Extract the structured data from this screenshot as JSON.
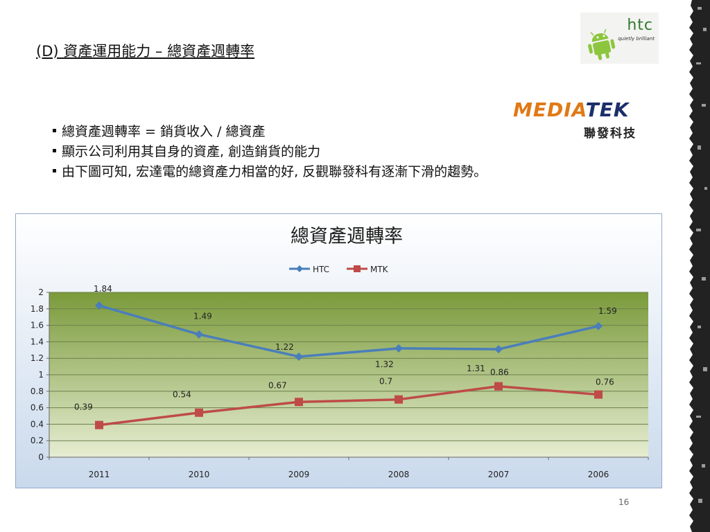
{
  "slide": {
    "title": "(D) 資產運用能力 – 總資產週轉率",
    "bullets": [
      "總資產週轉率 = 銷貨收入 / 總資產",
      "顯示公司利用其自身的資產, 創造銷貨的能力",
      "由下圖可知, 宏達電的總資產力相當的好, 反觀聯發科有逐漸下滑的趨勢。"
    ],
    "page_number": "16",
    "htc_logo": {
      "text": "htc",
      "tagline": "quietly brilliant",
      "icon": "android-robot-icon"
    },
    "mediatek_logo": {
      "part1": "MEDIA",
      "part2": "TEK",
      "subtitle": "聯發科技"
    }
  },
  "colors": {
    "htc_series": "#4a7ebb",
    "mtk_series": "#be4b48",
    "plot_top": "#7a9a3a",
    "plot_bottom": "#e6edd2",
    "chart_bg_top": "#ffffff",
    "chart_bg_bottom": "#c9d9ec"
  },
  "chart_data": {
    "type": "line",
    "title": "總資產週轉率",
    "categories": [
      "2011",
      "2010",
      "2009",
      "2008",
      "2007",
      "2006"
    ],
    "series": [
      {
        "name": "HTC",
        "values": [
          1.84,
          1.49,
          1.22,
          1.32,
          1.31,
          1.59
        ],
        "labels": [
          "1.84",
          "1.49",
          "1.22",
          "1.32",
          "1.31",
          "1.59"
        ]
      },
      {
        "name": "MTK",
        "values": [
          0.39,
          0.54,
          0.67,
          0.7,
          0.86,
          0.76
        ],
        "labels": [
          "0.39",
          "0.54",
          "0.67",
          "0.7",
          "0.86",
          "0.76"
        ]
      }
    ],
    "ylim": [
      0,
      2
    ],
    "yticks": [
      "0",
      "0.2",
      "0.4",
      "0.6",
      "0.8",
      "1",
      "1.2",
      "1.4",
      "1.6",
      "1.8",
      "2"
    ],
    "legend": "top",
    "grid": true
  }
}
